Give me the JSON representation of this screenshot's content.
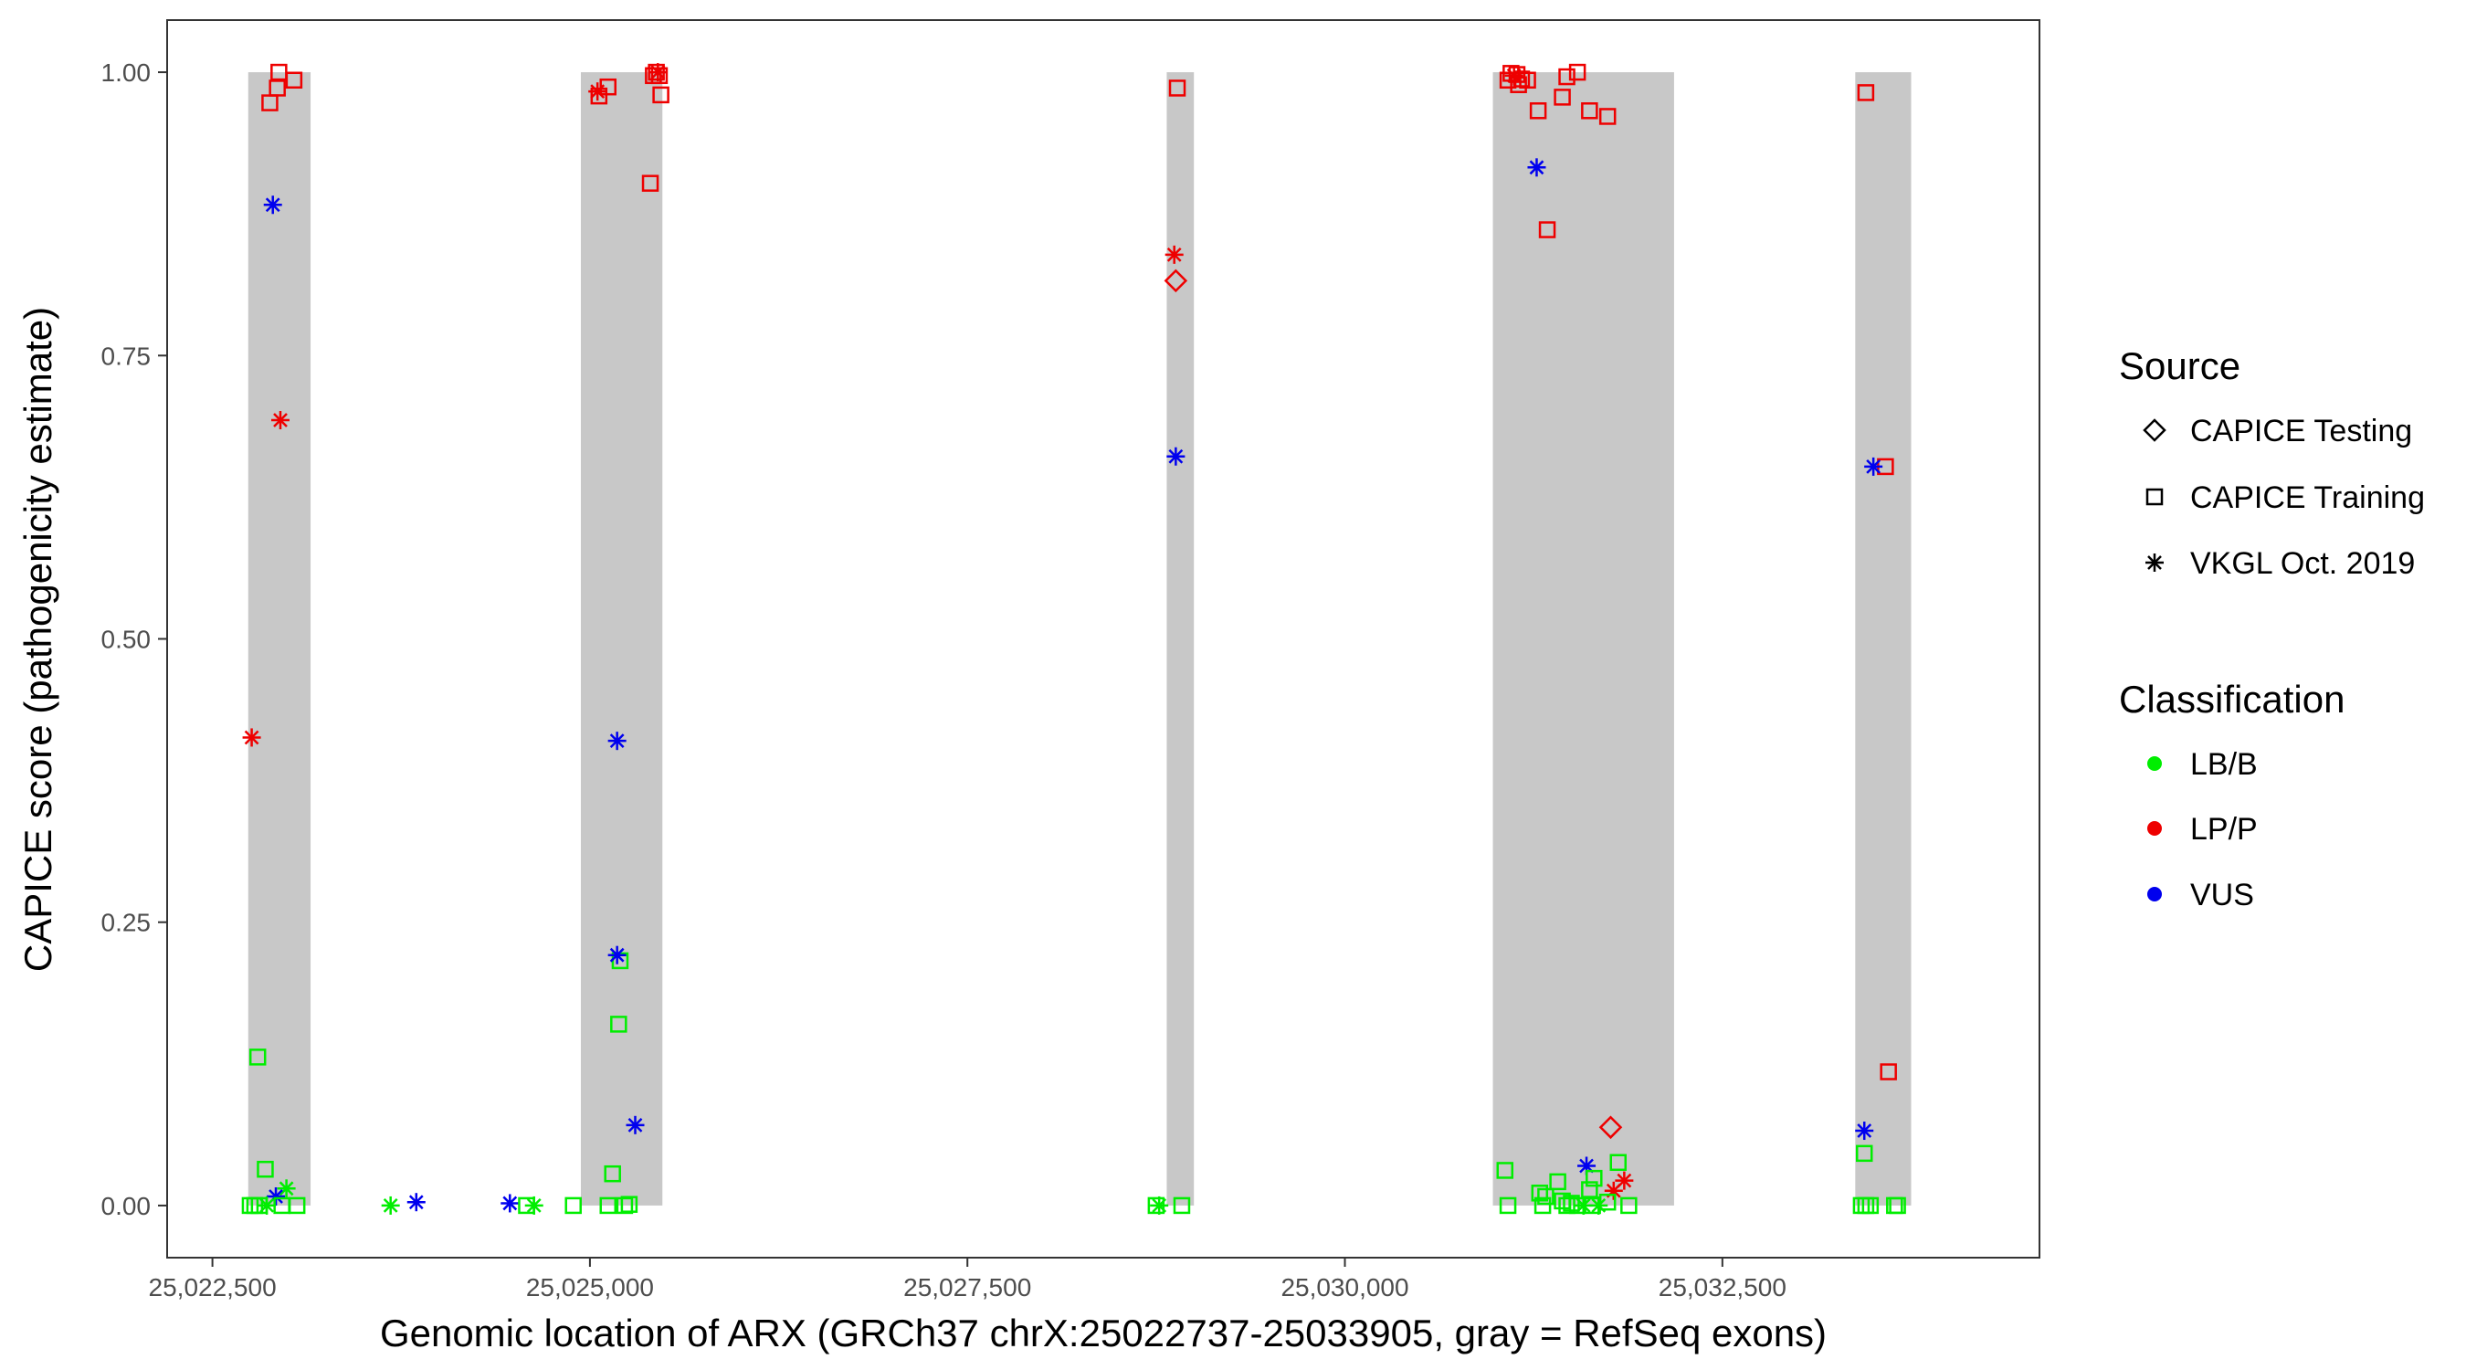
{
  "chart_data": {
    "type": "scatter",
    "xlabel": "Genomic location of ARX (GRCh37 chrX:25022737-25033905, gray = RefSeq exons)",
    "ylabel": "CAPICE score (pathogenicity estimate)",
    "xlim": [
      25022200,
      25034600
    ],
    "ylim": [
      -0.046,
      1.046
    ],
    "x_ticks": [
      25022500,
      25025000,
      25027500,
      25030000,
      25032500
    ],
    "x_tick_labels": [
      "25,022,500",
      "25,025,000",
      "25,027,500",
      "25,030,000",
      "25,032,500"
    ],
    "y_ticks": [
      0,
      0.25,
      0.5,
      0.75,
      1.0
    ],
    "y_tick_labels": [
      "0.00",
      "0.25",
      "0.50",
      "0.75",
      "1.00"
    ],
    "grid": false,
    "exons": [
      {
        "start": 25022737,
        "end": 25023150
      },
      {
        "start": 25024940,
        "end": 25025480
      },
      {
        "start": 25028820,
        "end": 25029000
      },
      {
        "start": 25030980,
        "end": 25032180
      },
      {
        "start": 25033380,
        "end": 25033750
      }
    ],
    "legend": {
      "placement": "right",
      "source_title": "Source",
      "source_entries": [
        {
          "label": "CAPICE Testing",
          "shape": "diamond"
        },
        {
          "label": "CAPICE Training",
          "shape": "square"
        },
        {
          "label": "VKGL Oct. 2019",
          "shape": "asterisk"
        }
      ],
      "classification_title": "Classification",
      "classification_entries": [
        {
          "label": "LB/B",
          "color": "#00ee00"
        },
        {
          "label": "LP/P",
          "color": "#ee0000"
        },
        {
          "label": "VUS",
          "color": "#0000ee"
        }
      ]
    },
    "colors": {
      "LB/B": "#00ee00",
      "LP/P": "#ee0000",
      "VUS": "#0000ee",
      "exon": "#c8c8c8"
    },
    "points": [
      {
        "x": 25022880,
        "y": 0.973,
        "shape": "square",
        "class": "LP/P"
      },
      {
        "x": 25022940,
        "y": 1.0,
        "shape": "square",
        "class": "LP/P"
      },
      {
        "x": 25022930,
        "y": 0.986,
        "shape": "square",
        "class": "LP/P"
      },
      {
        "x": 25023040,
        "y": 0.993,
        "shape": "square",
        "class": "LP/P"
      },
      {
        "x": 25022900,
        "y": 0.883,
        "shape": "asterisk",
        "class": "VUS"
      },
      {
        "x": 25022950,
        "y": 0.693,
        "shape": "asterisk",
        "class": "LP/P"
      },
      {
        "x": 25022760,
        "y": 0.413,
        "shape": "asterisk",
        "class": "LP/P"
      },
      {
        "x": 25022800,
        "y": 0.131,
        "shape": "square",
        "class": "LB/B"
      },
      {
        "x": 25022850,
        "y": 0.032,
        "shape": "square",
        "class": "LB/B"
      },
      {
        "x": 25022990,
        "y": 0.015,
        "shape": "asterisk",
        "class": "LB/B"
      },
      {
        "x": 25022920,
        "y": 0.008,
        "shape": "asterisk",
        "class": "VUS"
      },
      {
        "x": 25022750,
        "y": 0.0,
        "shape": "square",
        "class": "LB/B"
      },
      {
        "x": 25022780,
        "y": 0.0,
        "shape": "square",
        "class": "LB/B"
      },
      {
        "x": 25022810,
        "y": 0.0,
        "shape": "square",
        "class": "LB/B"
      },
      {
        "x": 25022860,
        "y": 0.0,
        "shape": "asterisk",
        "class": "LB/B"
      },
      {
        "x": 25022960,
        "y": 0.0,
        "shape": "square",
        "class": "LB/B"
      },
      {
        "x": 25023060,
        "y": 0.0,
        "shape": "square",
        "class": "LB/B"
      },
      {
        "x": 25023680,
        "y": 0.0,
        "shape": "asterisk",
        "class": "LB/B"
      },
      {
        "x": 25023850,
        "y": 0.003,
        "shape": "asterisk",
        "class": "VUS"
      },
      {
        "x": 25024470,
        "y": 0.002,
        "shape": "asterisk",
        "class": "VUS"
      },
      {
        "x": 25024580,
        "y": 0.0,
        "shape": "square",
        "class": "LB/B"
      },
      {
        "x": 25024630,
        "y": 0.0,
        "shape": "asterisk",
        "class": "LB/B"
      },
      {
        "x": 25024890,
        "y": 0.0,
        "shape": "square",
        "class": "LB/B"
      },
      {
        "x": 25025050,
        "y": 0.983,
        "shape": "asterisk",
        "class": "LP/P"
      },
      {
        "x": 25025060,
        "y": 0.979,
        "shape": "square",
        "class": "LP/P"
      },
      {
        "x": 25025120,
        "y": 0.987,
        "shape": "square",
        "class": "LP/P"
      },
      {
        "x": 25025420,
        "y": 0.997,
        "shape": "square",
        "class": "LP/P"
      },
      {
        "x": 25025440,
        "y": 1.0,
        "shape": "square",
        "class": "LP/P"
      },
      {
        "x": 25025450,
        "y": 1.0,
        "shape": "asterisk",
        "class": "LP/P"
      },
      {
        "x": 25025460,
        "y": 0.997,
        "shape": "square",
        "class": "LP/P"
      },
      {
        "x": 25025470,
        "y": 0.98,
        "shape": "square",
        "class": "LP/P"
      },
      {
        "x": 25025400,
        "y": 0.902,
        "shape": "square",
        "class": "LP/P"
      },
      {
        "x": 25025180,
        "y": 0.41,
        "shape": "asterisk",
        "class": "VUS"
      },
      {
        "x": 25025200,
        "y": 0.216,
        "shape": "square",
        "class": "LB/B"
      },
      {
        "x": 25025180,
        "y": 0.221,
        "shape": "asterisk",
        "class": "VUS"
      },
      {
        "x": 25025190,
        "y": 0.16,
        "shape": "square",
        "class": "LB/B"
      },
      {
        "x": 25025300,
        "y": 0.071,
        "shape": "asterisk",
        "class": "VUS"
      },
      {
        "x": 25025150,
        "y": 0.028,
        "shape": "square",
        "class": "LB/B"
      },
      {
        "x": 25025120,
        "y": 0.0,
        "shape": "square",
        "class": "LB/B"
      },
      {
        "x": 25025230,
        "y": 0.0,
        "shape": "square",
        "class": "LB/B"
      },
      {
        "x": 25025260,
        "y": 0.001,
        "shape": "square",
        "class": "LB/B"
      },
      {
        "x": 25028870,
        "y": 0.839,
        "shape": "asterisk",
        "class": "LP/P"
      },
      {
        "x": 25028880,
        "y": 0.816,
        "shape": "diamond",
        "class": "LP/P"
      },
      {
        "x": 25028890,
        "y": 0.986,
        "shape": "square",
        "class": "LP/P"
      },
      {
        "x": 25028880,
        "y": 0.661,
        "shape": "asterisk",
        "class": "VUS"
      },
      {
        "x": 25028750,
        "y": 0.0,
        "shape": "square",
        "class": "LB/B"
      },
      {
        "x": 25028770,
        "y": 0.0,
        "shape": "asterisk",
        "class": "LB/B"
      },
      {
        "x": 25028920,
        "y": 0.0,
        "shape": "square",
        "class": "LB/B"
      },
      {
        "x": 25031080,
        "y": 0.993,
        "shape": "square",
        "class": "LP/P"
      },
      {
        "x": 25031100,
        "y": 0.999,
        "shape": "square",
        "class": "LP/P"
      },
      {
        "x": 25031120,
        "y": 0.997,
        "shape": "asterisk",
        "class": "LP/P"
      },
      {
        "x": 25031140,
        "y": 0.998,
        "shape": "square",
        "class": "LP/P"
      },
      {
        "x": 25031150,
        "y": 0.989,
        "shape": "square",
        "class": "LP/P"
      },
      {
        "x": 25031170,
        "y": 0.994,
        "shape": "square",
        "class": "LP/P"
      },
      {
        "x": 25031210,
        "y": 0.993,
        "shape": "square",
        "class": "LP/P"
      },
      {
        "x": 25031280,
        "y": 0.966,
        "shape": "square",
        "class": "LP/P"
      },
      {
        "x": 25031440,
        "y": 0.978,
        "shape": "square",
        "class": "LP/P"
      },
      {
        "x": 25031470,
        "y": 0.996,
        "shape": "square",
        "class": "LP/P"
      },
      {
        "x": 25031540,
        "y": 1.0,
        "shape": "square",
        "class": "LP/P"
      },
      {
        "x": 25031620,
        "y": 0.966,
        "shape": "square",
        "class": "LP/P"
      },
      {
        "x": 25031740,
        "y": 0.961,
        "shape": "square",
        "class": "LP/P"
      },
      {
        "x": 25031340,
        "y": 0.861,
        "shape": "square",
        "class": "LP/P"
      },
      {
        "x": 25031270,
        "y": 0.916,
        "shape": "asterisk",
        "class": "VUS"
      },
      {
        "x": 25031600,
        "y": 0.035,
        "shape": "asterisk",
        "class": "VUS"
      },
      {
        "x": 25031760,
        "y": 0.069,
        "shape": "diamond",
        "class": "LP/P"
      },
      {
        "x": 25031810,
        "y": 0.038,
        "shape": "square",
        "class": "LB/B"
      },
      {
        "x": 25031850,
        "y": 0.022,
        "shape": "asterisk",
        "class": "LP/P"
      },
      {
        "x": 25031780,
        "y": 0.013,
        "shape": "asterisk",
        "class": "LP/P"
      },
      {
        "x": 25031060,
        "y": 0.031,
        "shape": "square",
        "class": "LB/B"
      },
      {
        "x": 25031410,
        "y": 0.021,
        "shape": "square",
        "class": "LB/B"
      },
      {
        "x": 25031650,
        "y": 0.024,
        "shape": "square",
        "class": "LB/B"
      },
      {
        "x": 25031290,
        "y": 0.011,
        "shape": "square",
        "class": "LB/B"
      },
      {
        "x": 25031330,
        "y": 0.008,
        "shape": "square",
        "class": "LB/B"
      },
      {
        "x": 25031620,
        "y": 0.014,
        "shape": "square",
        "class": "LB/B"
      },
      {
        "x": 25031080,
        "y": 0.0,
        "shape": "square",
        "class": "LB/B"
      },
      {
        "x": 25031310,
        "y": 0.0,
        "shape": "square",
        "class": "LB/B"
      },
      {
        "x": 25031440,
        "y": 0.004,
        "shape": "square",
        "class": "LB/B"
      },
      {
        "x": 25031470,
        "y": 0.0,
        "shape": "square",
        "class": "LB/B"
      },
      {
        "x": 25031500,
        "y": 0.002,
        "shape": "square",
        "class": "LB/B"
      },
      {
        "x": 25031540,
        "y": 0.0,
        "shape": "square",
        "class": "LB/B"
      },
      {
        "x": 25031580,
        "y": 0.0,
        "shape": "asterisk",
        "class": "LB/B"
      },
      {
        "x": 25031640,
        "y": 0.0,
        "shape": "square",
        "class": "LB/B"
      },
      {
        "x": 25031680,
        "y": 0.0,
        "shape": "asterisk",
        "class": "LB/B"
      },
      {
        "x": 25031740,
        "y": 0.003,
        "shape": "square",
        "class": "LB/B"
      },
      {
        "x": 25031880,
        "y": 0.0,
        "shape": "square",
        "class": "LB/B"
      },
      {
        "x": 25033450,
        "y": 0.982,
        "shape": "square",
        "class": "LP/P"
      },
      {
        "x": 25033580,
        "y": 0.652,
        "shape": "square",
        "class": "LP/P"
      },
      {
        "x": 25033500,
        "y": 0.652,
        "shape": "asterisk",
        "class": "VUS"
      },
      {
        "x": 25033600,
        "y": 0.118,
        "shape": "square",
        "class": "LP/P"
      },
      {
        "x": 25033440,
        "y": 0.066,
        "shape": "asterisk",
        "class": "VUS"
      },
      {
        "x": 25033440,
        "y": 0.046,
        "shape": "square",
        "class": "LB/B"
      },
      {
        "x": 25033420,
        "y": 0.0,
        "shape": "square",
        "class": "LB/B"
      },
      {
        "x": 25033450,
        "y": 0.0,
        "shape": "square",
        "class": "LB/B"
      },
      {
        "x": 25033480,
        "y": 0.0,
        "shape": "square",
        "class": "LB/B"
      },
      {
        "x": 25033640,
        "y": 0.0,
        "shape": "square",
        "class": "LB/B"
      },
      {
        "x": 25033660,
        "y": 0.0,
        "shape": "square",
        "class": "LB/B"
      }
    ]
  }
}
